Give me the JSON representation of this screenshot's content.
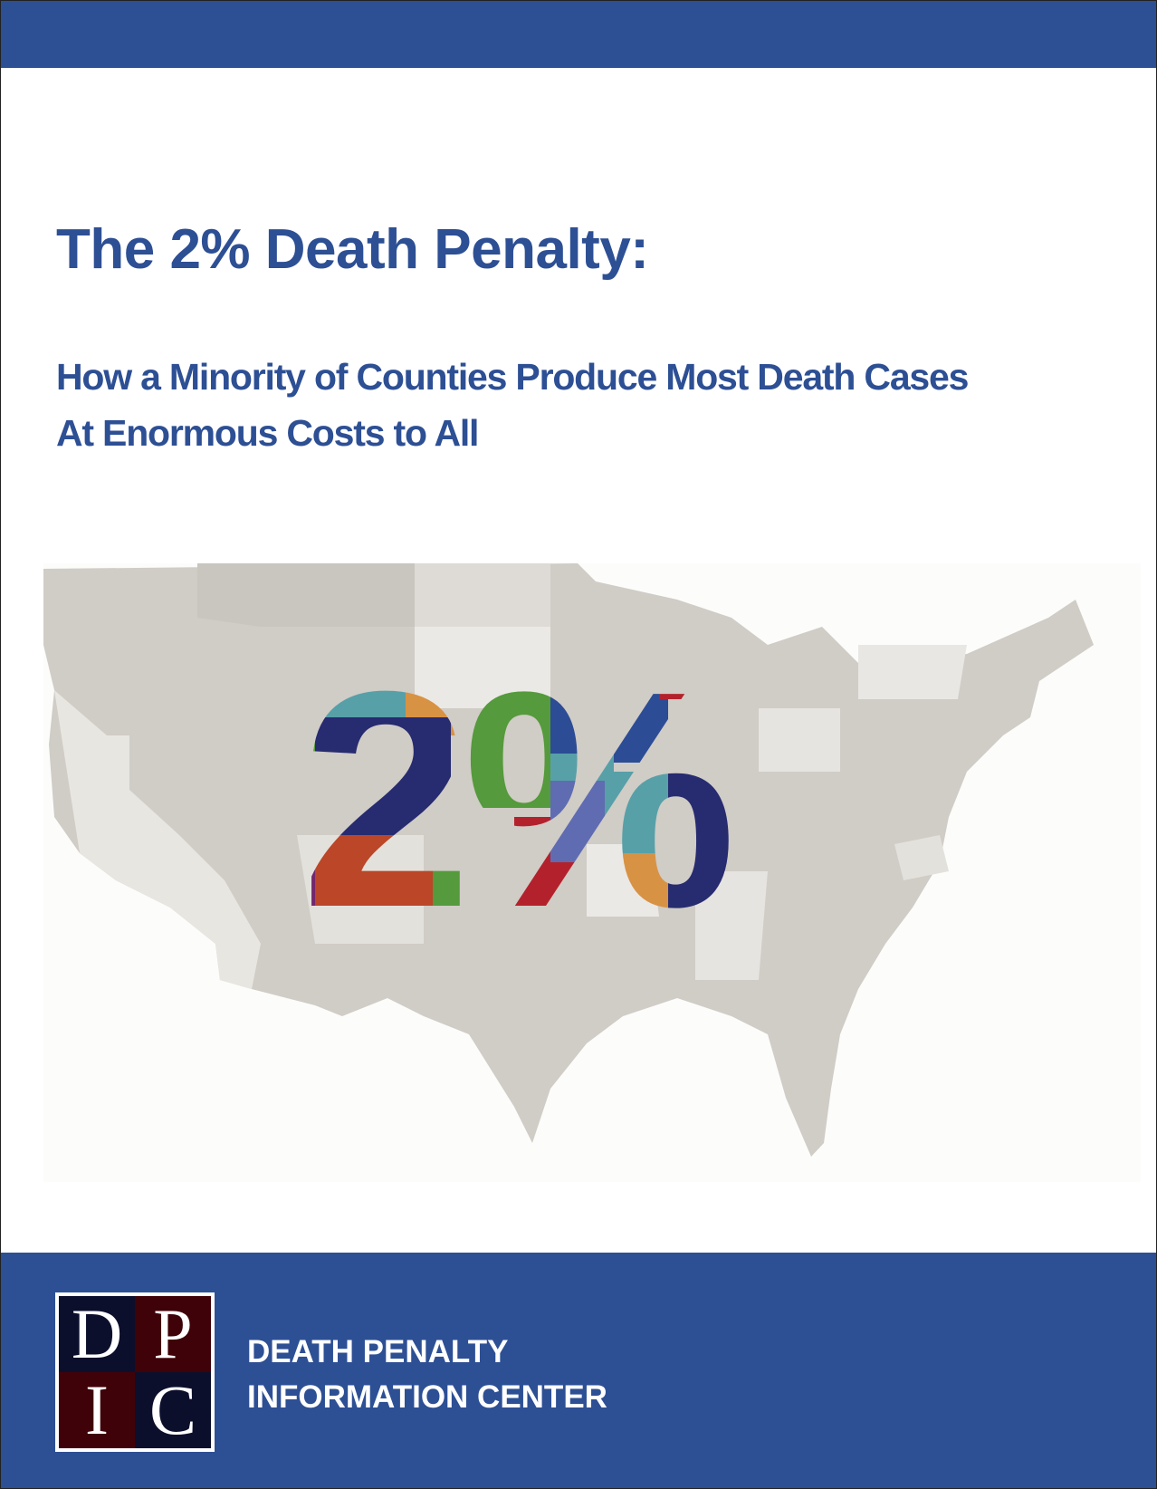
{
  "cover": {
    "title": "The 2% Death Penalty:",
    "subtitle_line1": "How a Minority of Counties Produce Most Death Cases",
    "subtitle_line2": "At Enormous Costs to All"
  },
  "hero": {
    "big_text": "2%",
    "description_colors": {
      "teal": "#57a0a8",
      "orange": "#d89244",
      "green": "#559a3c",
      "navy": "#272b70",
      "blue": "#2c4c95",
      "red": "#b3222c",
      "purple": "#74276c",
      "rust": "#bb4628",
      "map_state": "#d0ccc6"
    }
  },
  "logo": {
    "letters": [
      "D",
      "P",
      "I",
      "C"
    ]
  },
  "footer": {
    "org_line1": "DEATH PENALTY",
    "org_line2": "INFORMATION CENTER"
  },
  "colors": {
    "brand_blue": "#2d4f94",
    "logo_dark": "#0c0f2c",
    "logo_maroon": "#3f0208"
  }
}
